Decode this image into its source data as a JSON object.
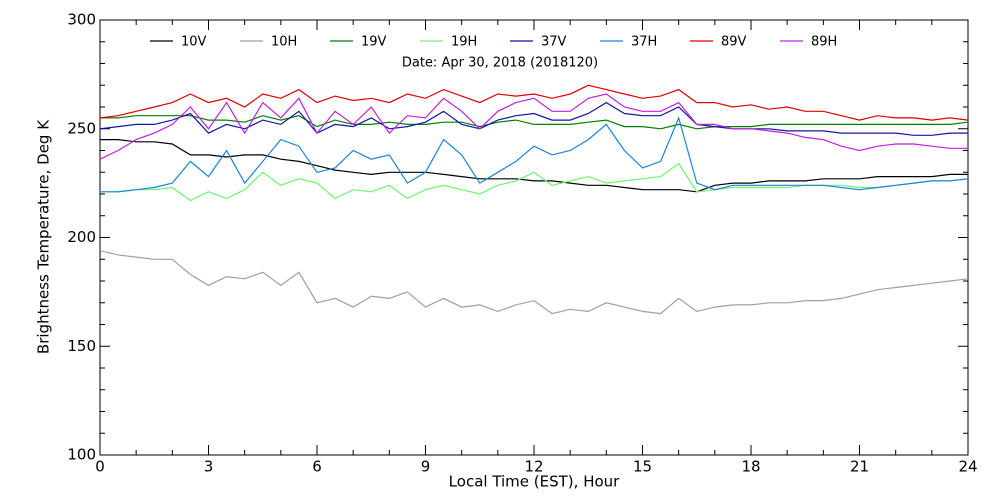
{
  "chart_data": {
    "type": "line",
    "title": "Date: Apr 30, 2018 (2018120)",
    "xlabel": "Local Time (EST), Hour",
    "ylabel": "Brightness Temperature, Deg K",
    "x": [
      0,
      0.5,
      1,
      1.5,
      2,
      2.5,
      3,
      3.5,
      4,
      4.5,
      5,
      5.5,
      6,
      6.5,
      7,
      7.5,
      8,
      8.5,
      9,
      9.5,
      10,
      10.5,
      11,
      11.5,
      12,
      12.5,
      13,
      13.5,
      14,
      14.5,
      15,
      15.5,
      16,
      16.5,
      17,
      17.5,
      18,
      18.5,
      19,
      19.5,
      20,
      20.5,
      21,
      21.5,
      22,
      22.5,
      23,
      23.5,
      24
    ],
    "xlim": [
      0,
      24
    ],
    "xticks": [
      0,
      3,
      6,
      9,
      12,
      15,
      18,
      21,
      24
    ],
    "ylim": [
      100,
      300
    ],
    "yticks": [
      100,
      150,
      200,
      250,
      300
    ],
    "series": [
      {
        "name": "10V",
        "color": "#000000",
        "values": [
          245,
          245,
          244,
          244,
          243,
          238,
          238,
          237,
          238,
          238,
          236,
          235,
          233,
          231,
          230,
          229,
          230,
          230,
          230,
          229,
          228,
          227,
          227,
          227,
          226,
          226,
          225,
          224,
          224,
          223,
          222,
          222,
          222,
          221,
          224,
          225,
          225,
          226,
          226,
          226,
          227,
          227,
          227,
          228,
          228,
          228,
          228,
          229,
          229
        ]
      },
      {
        "name": "10H",
        "color": "#a0a0a0",
        "values": [
          194,
          192,
          191,
          190,
          190,
          183,
          178,
          182,
          181,
          184,
          178,
          184,
          170,
          172,
          168,
          173,
          172,
          175,
          168,
          172,
          168,
          169,
          166,
          169,
          171,
          165,
          167,
          166,
          170,
          168,
          166,
          165,
          172,
          166,
          168,
          169,
          169,
          170,
          170,
          171,
          171,
          172,
          174,
          176,
          177,
          178,
          179,
          180,
          181
        ]
      },
      {
        "name": "19V",
        "color": "#008000",
        "values": [
          255,
          255,
          256,
          256,
          256,
          256,
          254,
          254,
          253,
          256,
          254,
          256,
          251,
          254,
          252,
          252,
          253,
          252,
          252,
          253,
          253,
          251,
          253,
          254,
          252,
          252,
          252,
          253,
          254,
          251,
          251,
          250,
          252,
          250,
          251,
          251,
          251,
          252,
          252,
          252,
          252,
          252,
          252,
          252,
          252,
          252,
          252,
          252,
          253
        ]
      },
      {
        "name": "19H",
        "color": "#70f070",
        "values": [
          221,
          221,
          222,
          222,
          223,
          217,
          221,
          218,
          222,
          230,
          224,
          227,
          225,
          218,
          222,
          221,
          224,
          218,
          222,
          224,
          222,
          220,
          224,
          226,
          230,
          224,
          226,
          228,
          225,
          226,
          227,
          228,
          234,
          221,
          222,
          223,
          223,
          223,
          223,
          224,
          224,
          224,
          223,
          223,
          224,
          225,
          226,
          226,
          227
        ]
      },
      {
        "name": "37V",
        "color": "#1414a8",
        "values": [
          250,
          251,
          252,
          252,
          254,
          257,
          248,
          252,
          250,
          254,
          252,
          258,
          248,
          252,
          251,
          255,
          250,
          251,
          253,
          258,
          252,
          250,
          254,
          256,
          257,
          254,
          254,
          257,
          262,
          257,
          256,
          256,
          260,
          252,
          251,
          250,
          250,
          250,
          249,
          249,
          249,
          248,
          248,
          248,
          248,
          247,
          247,
          248,
          248
        ]
      },
      {
        "name": "37H",
        "color": "#1a84d8",
        "values": [
          221,
          221,
          222,
          223,
          225,
          235,
          228,
          240,
          225,
          235,
          245,
          242,
          230,
          232,
          240,
          236,
          238,
          225,
          230,
          245,
          238,
          225,
          230,
          235,
          242,
          238,
          240,
          245,
          252,
          240,
          232,
          235,
          255,
          225,
          222,
          224,
          224,
          224,
          224,
          224,
          224,
          223,
          222,
          223,
          224,
          225,
          226,
          226,
          227
        ]
      },
      {
        "name": "89V",
        "color": "#e00000",
        "values": [
          255,
          256,
          258,
          260,
          262,
          266,
          262,
          264,
          260,
          266,
          264,
          268,
          262,
          265,
          263,
          264,
          262,
          266,
          264,
          268,
          265,
          262,
          266,
          265,
          266,
          264,
          266,
          270,
          268,
          266,
          264,
          265,
          268,
          262,
          262,
          260,
          261,
          259,
          260,
          258,
          258,
          256,
          254,
          256,
          255,
          255,
          254,
          255,
          254
        ]
      },
      {
        "name": "89H",
        "color": "#c020e0",
        "values": [
          236,
          240,
          245,
          248,
          252,
          260,
          250,
          262,
          248,
          262,
          255,
          264,
          248,
          258,
          252,
          260,
          248,
          256,
          255,
          264,
          258,
          250,
          258,
          262,
          264,
          258,
          258,
          264,
          266,
          260,
          258,
          258,
          262,
          252,
          252,
          250,
          250,
          249,
          248,
          246,
          245,
          242,
          240,
          242,
          243,
          243,
          242,
          241,
          241
        ]
      }
    ]
  }
}
